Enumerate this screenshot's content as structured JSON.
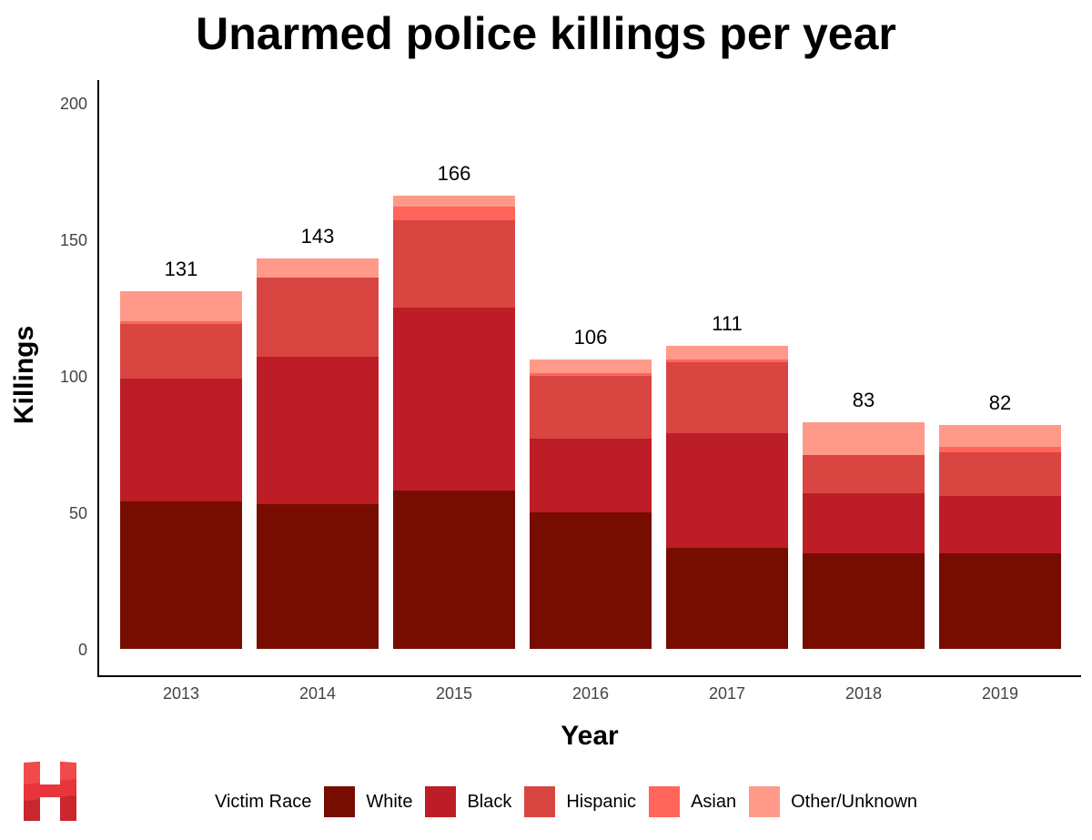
{
  "chart_data": {
    "type": "bar",
    "stacked": true,
    "title": "Unarmed police killings per year",
    "xlabel": "Year",
    "ylabel": "Killings",
    "ylim": [
      0,
      200
    ],
    "yticks": [
      0,
      50,
      100,
      150,
      200
    ],
    "categories": [
      "2013",
      "2014",
      "2015",
      "2016",
      "2017",
      "2018",
      "2019"
    ],
    "series": [
      {
        "name": "White",
        "color": "#770c00",
        "values": [
          54,
          53,
          58,
          50,
          37,
          35,
          35
        ]
      },
      {
        "name": "Black",
        "color": "#bd1d26",
        "values": [
          45,
          54,
          67,
          27,
          42,
          22,
          21
        ]
      },
      {
        "name": "Hispanic",
        "color": "#d94641",
        "values": [
          20,
          29,
          32,
          23,
          26,
          14,
          16
        ]
      },
      {
        "name": "Asian",
        "color": "#ff655b",
        "values": [
          1,
          0,
          5,
          1,
          1,
          0,
          2
        ]
      },
      {
        "name": "Other/Unknown",
        "color": "#ff9a8a",
        "values": [
          11,
          7,
          4,
          5,
          5,
          12,
          8
        ]
      }
    ],
    "totals": [
      131,
      143,
      166,
      106,
      111,
      83,
      82
    ],
    "legend": {
      "title": "Victim Race",
      "position": "bottom"
    }
  }
}
